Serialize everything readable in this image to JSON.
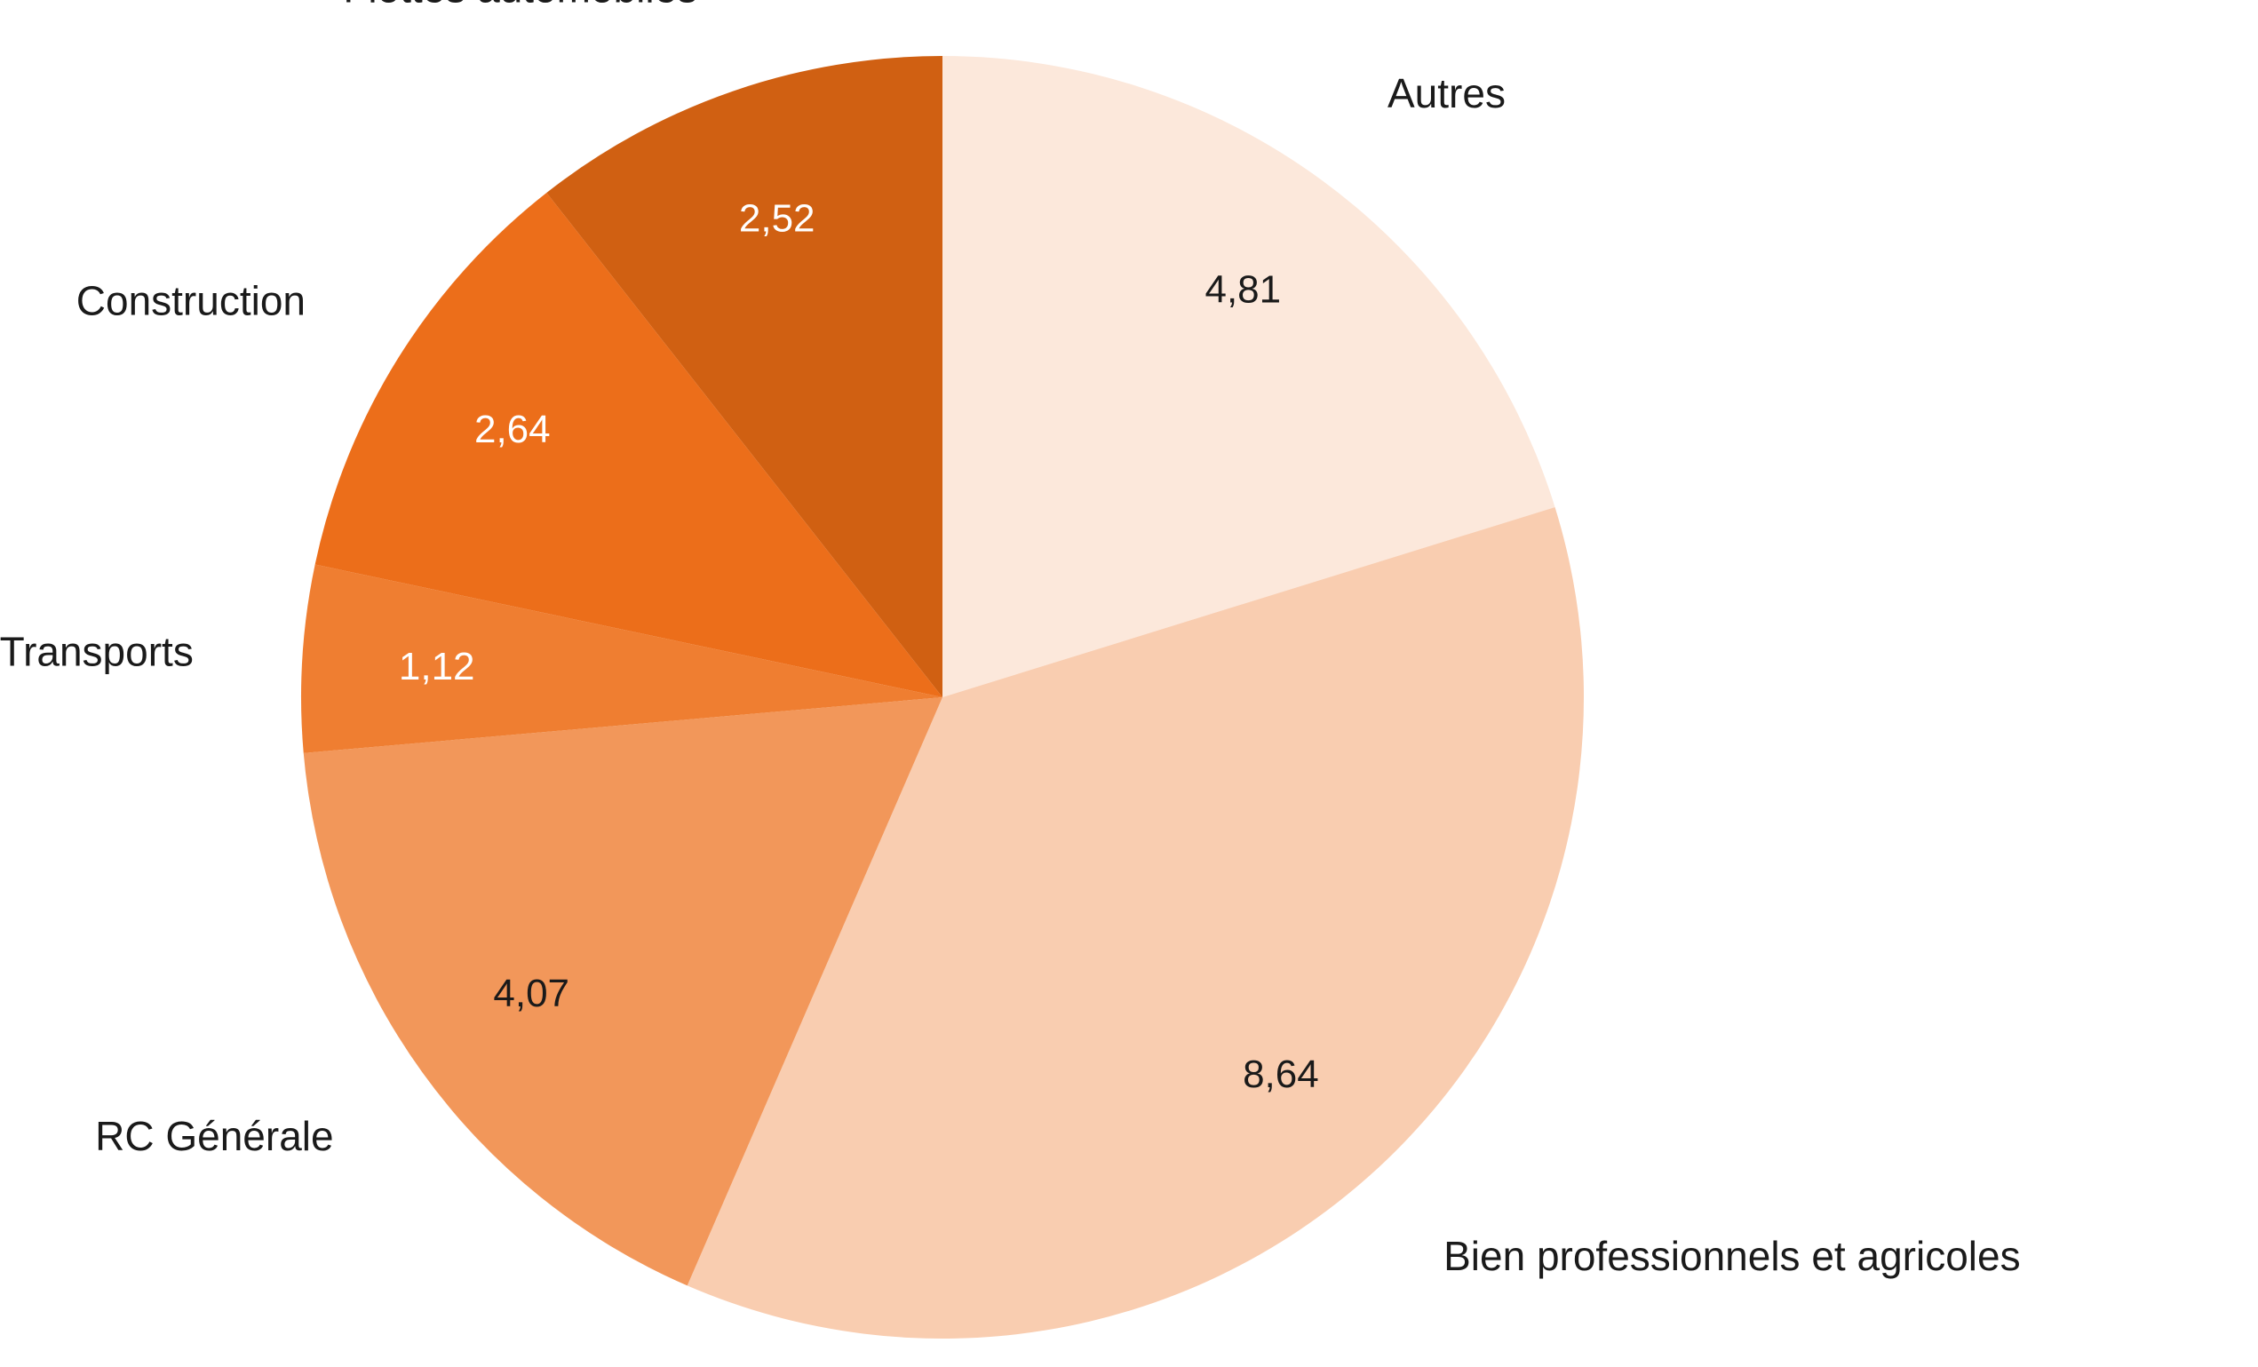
{
  "chart_data": {
    "type": "pie",
    "slices": [
      {
        "label": "Autres",
        "value": 4.81,
        "display": "4,81",
        "color": "#FCE8DB",
        "label_color": "#1a1a1a"
      },
      {
        "label": "Bien professionnels et agricoles",
        "value": 8.64,
        "display": "8,64",
        "color": "#F9CDB0",
        "label_color": "#1a1a1a"
      },
      {
        "label": "RC Générale",
        "value": 4.07,
        "display": "4,07",
        "color": "#F2975A",
        "label_color": "#1a1a1a"
      },
      {
        "label": "Transports",
        "value": 1.12,
        "display": "1,12",
        "color": "#EF7E31",
        "label_color": "#ffffff"
      },
      {
        "label": "Construction",
        "value": 2.64,
        "display": "2,64",
        "color": "#EC6E1A",
        "label_color": "#ffffff"
      },
      {
        "label": "Flottes automobiles",
        "value": 2.52,
        "display": "2,52",
        "color": "#D06012",
        "label_color": "#ffffff"
      }
    ],
    "start": "12 o'clock",
    "direction": "clockwise",
    "legend": "none"
  }
}
